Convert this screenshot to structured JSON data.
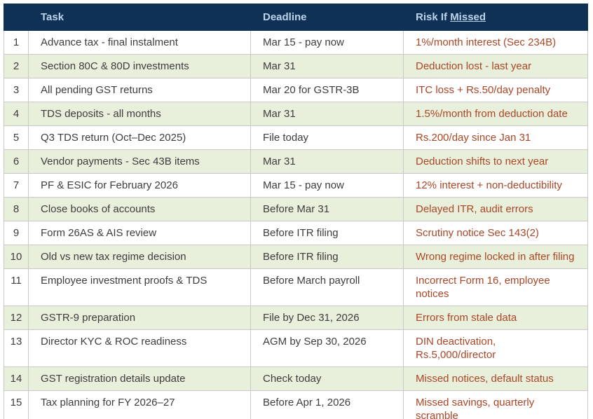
{
  "table": {
    "title": "Tax compliance deadlines table",
    "headers": {
      "num": "",
      "task": "Task",
      "deadline": "Deadline",
      "risk_prefix": "Risk If ",
      "risk_underlined": "Missed"
    },
    "rows": [
      {
        "num": "1",
        "task": "Advance tax - final instalment",
        "deadline": "Mar 15 - pay now",
        "risk": "1%/month interest (Sec 234B)"
      },
      {
        "num": "2",
        "task": "Section 80C & 80D investments",
        "deadline": "Mar 31",
        "risk": "Deduction lost - last year"
      },
      {
        "num": "3",
        "task": "All pending GST returns",
        "deadline": "Mar 20 for GSTR-3B",
        "risk": "ITC loss + Rs.50/day penalty"
      },
      {
        "num": "4",
        "task": "TDS deposits - all months",
        "deadline": "Mar 31",
        "risk": "1.5%/month from deduction date"
      },
      {
        "num": "5",
        "task": "Q3 TDS return (Oct–Dec 2025)",
        "deadline": "File today",
        "risk": "Rs.200/day since Jan 31"
      },
      {
        "num": "6",
        "task": "Vendor payments - Sec 43B items",
        "deadline": "Mar 31",
        "risk": "Deduction shifts to next year"
      },
      {
        "num": "7",
        "task": "PF & ESIC for February 2026",
        "deadline": "Mar 15 - pay now",
        "risk": "12% interest + non-deductibility"
      },
      {
        "num": "8",
        "task": "Close books of accounts",
        "deadline": "Before Mar 31",
        "risk": "Delayed ITR, audit errors"
      },
      {
        "num": "9",
        "task": "Form 26AS & AIS review",
        "deadline": "Before ITR filing",
        "risk": "Scrutiny notice Sec 143(2)"
      },
      {
        "num": "10",
        "task": "Old vs new tax regime decision",
        "deadline": "Before ITR filing",
        "risk": "Wrong regime locked in after filing"
      },
      {
        "num": "11",
        "task": "Employee investment proofs & TDS",
        "deadline": "Before March payroll",
        "risk": "Incorrect Form 16, employee\nnotices"
      },
      {
        "num": "12",
        "task": "GSTR-9 preparation",
        "deadline": "File by Dec 31, 2026",
        "risk": "Errors from stale data"
      },
      {
        "num": "13",
        "task": "Director KYC & ROC readiness",
        "deadline": "AGM by Sep 30, 2026",
        "risk": "DIN deactivation,\nRs.5,000/director"
      },
      {
        "num": "14",
        "task": "GST registration details update",
        "deadline": "Check today",
        "risk": "Missed notices, default status"
      },
      {
        "num": "15",
        "task": "Tax planning for FY 2026–27",
        "deadline": "Before Apr 1, 2026",
        "risk": "Missed savings, quarterly\nscramble"
      }
    ]
  },
  "colors": {
    "header_bg": "#0f3155",
    "header_text": "#bdd3ea",
    "alt_row_bg": "#e8f0dc",
    "risk_text": "#ab4626",
    "body_text": "#3d3d3d",
    "border": "#c9c9c9"
  }
}
